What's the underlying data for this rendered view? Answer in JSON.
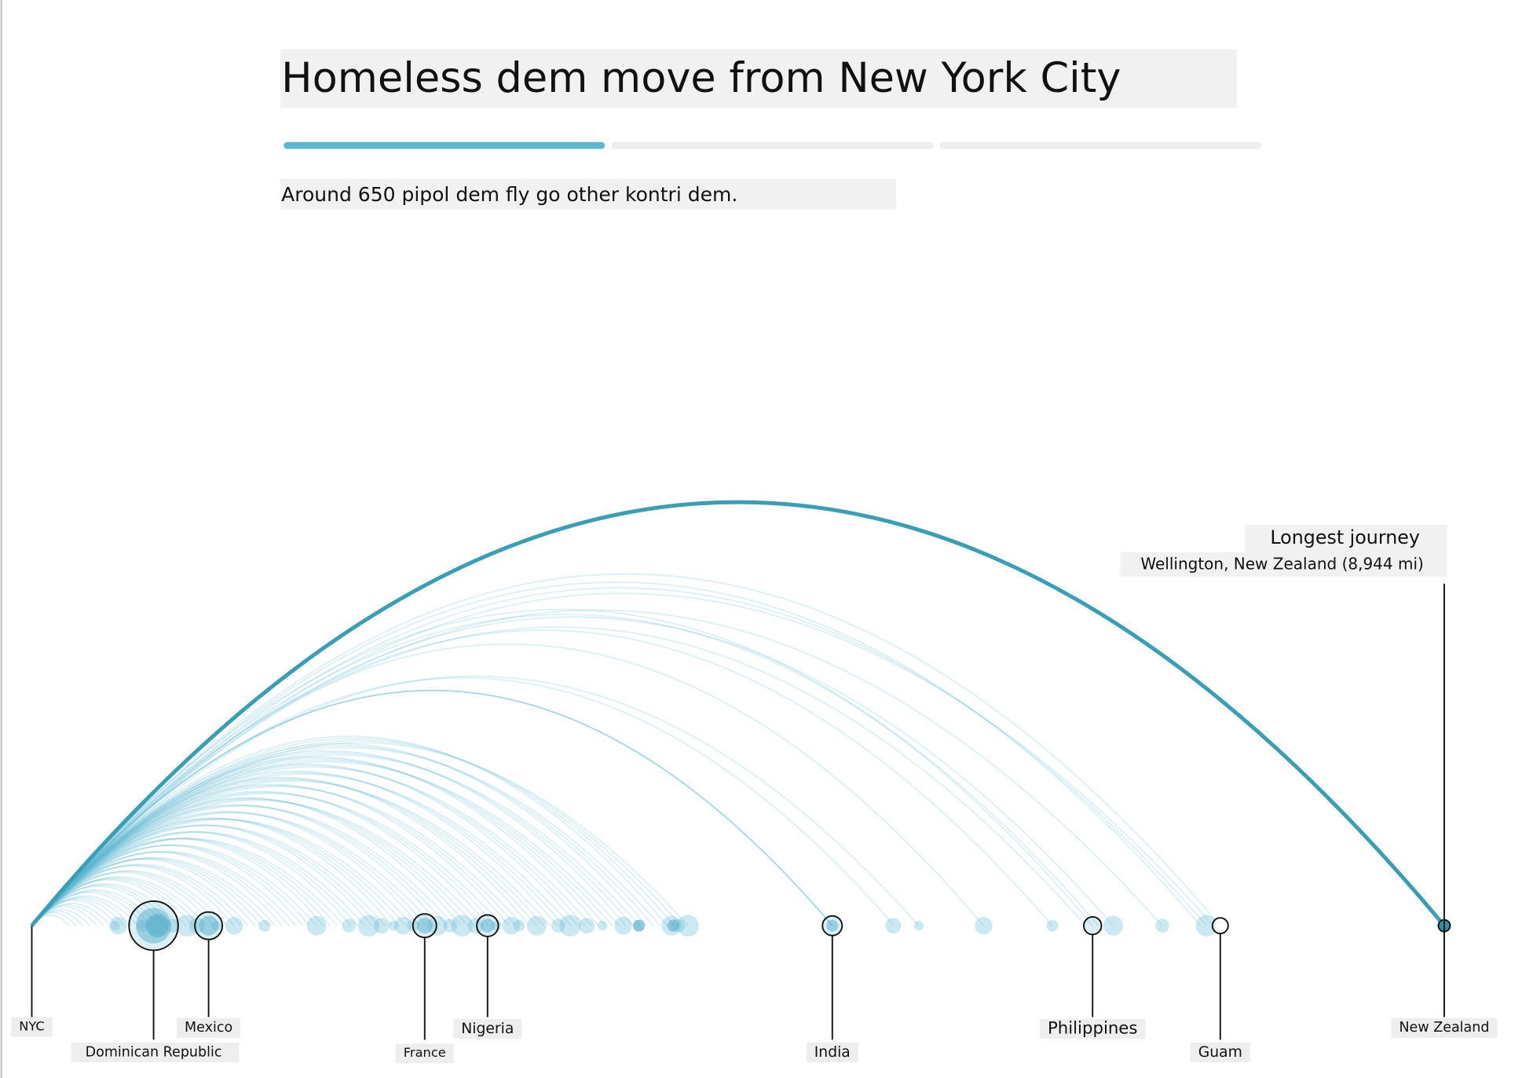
{
  "header": {
    "title": "Homeless dem move from New York City",
    "subtitle": "Around 650 pipol dem fly go other kontri dem."
  },
  "annotation": {
    "heading": "Longest journey",
    "detail": "Wellington, New Zealand (8,944 mi)"
  },
  "labels": [
    "NYC",
    "Dominican Republic",
    "Mexico",
    "France",
    "Nigeria",
    "India",
    "Philippines",
    "Guam",
    "New Zealand"
  ]
}
